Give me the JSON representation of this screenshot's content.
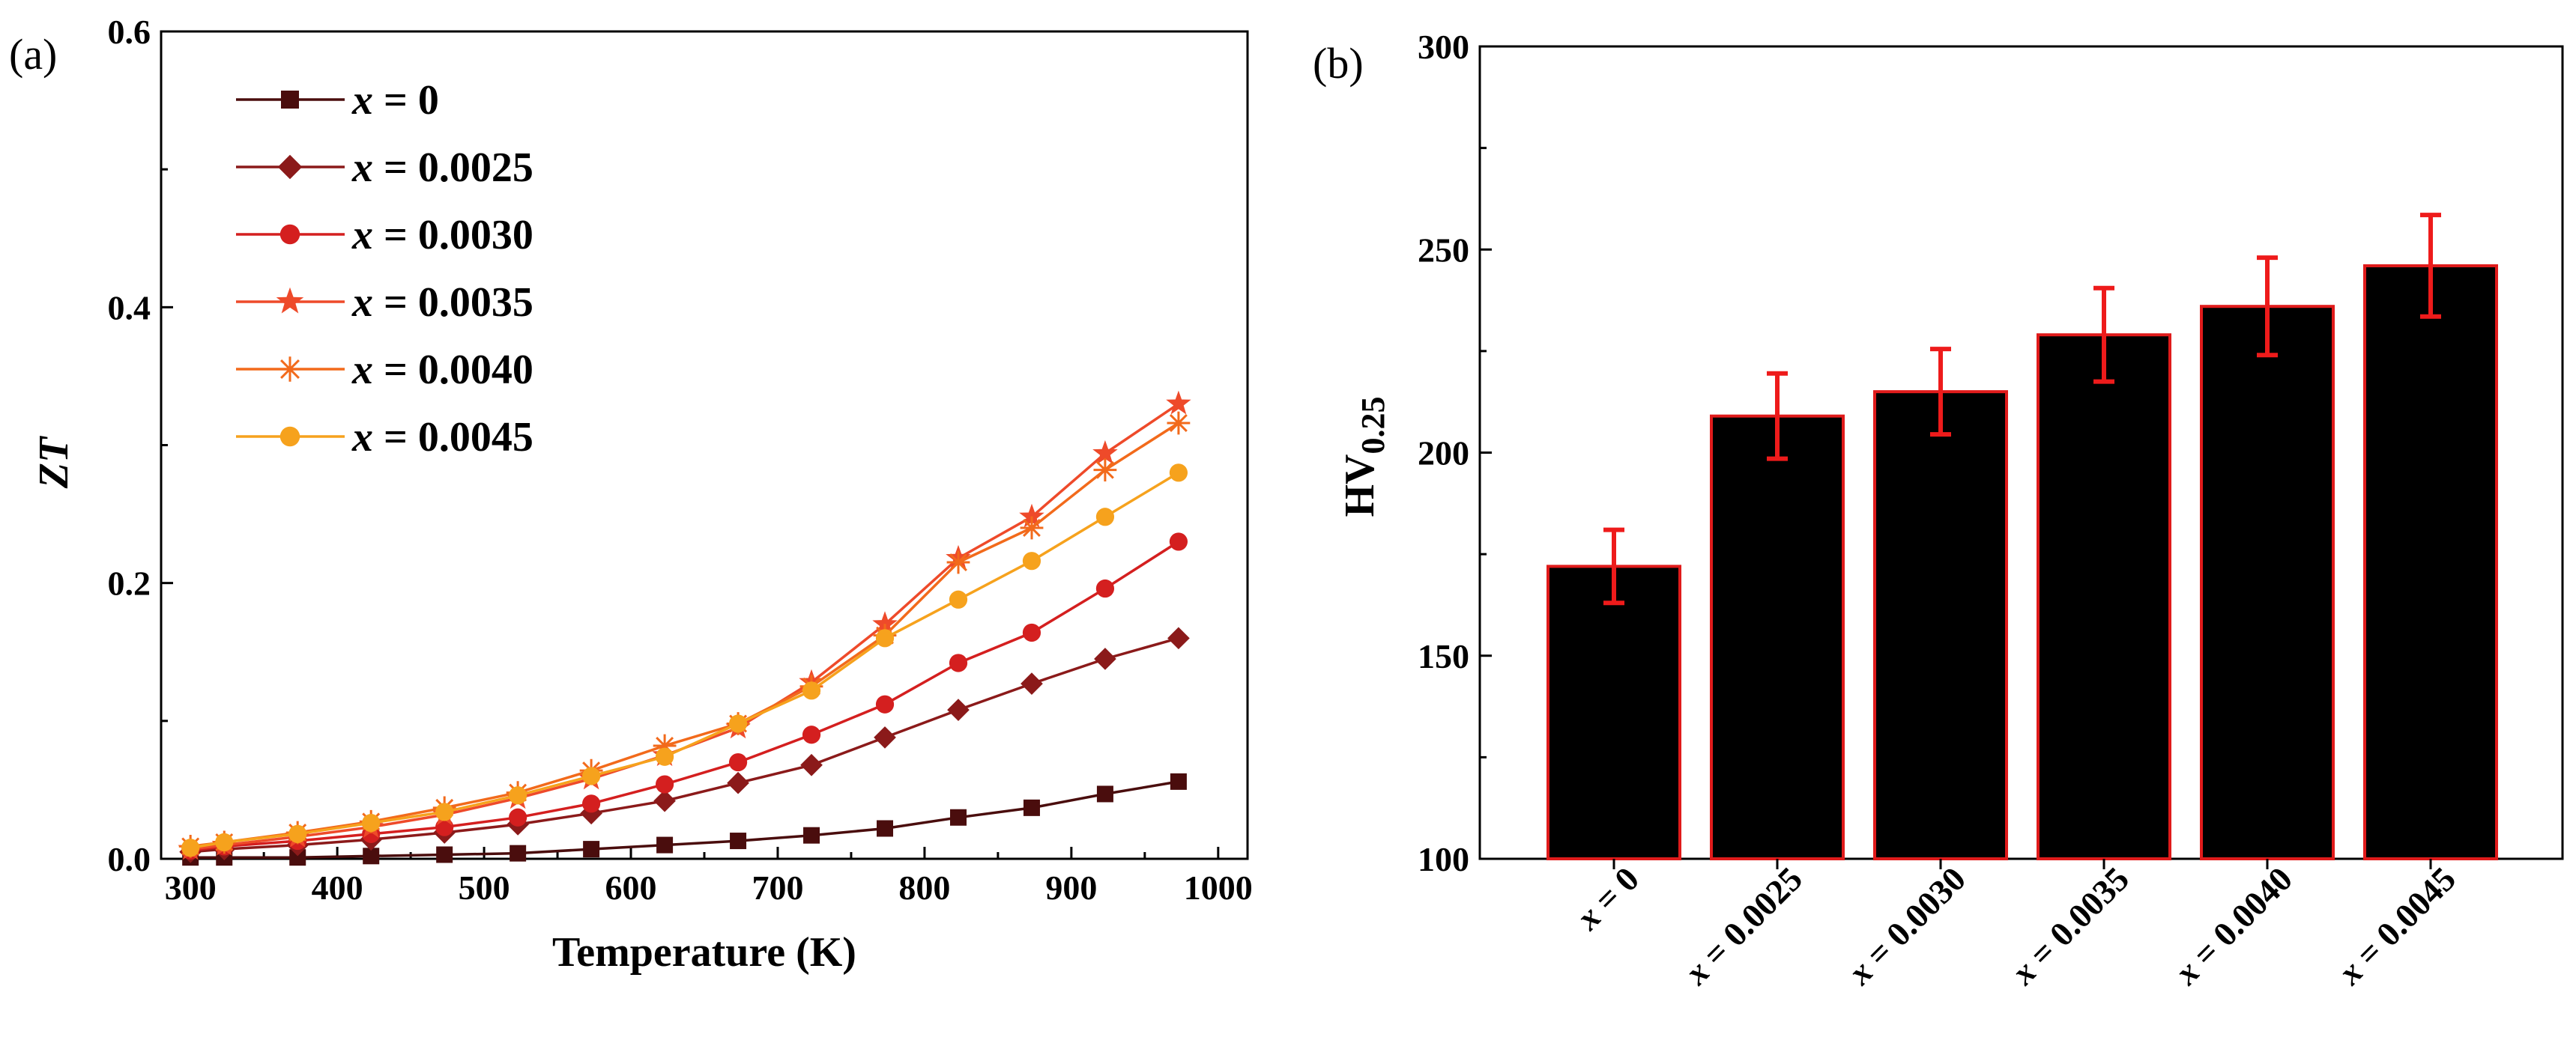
{
  "chart_data": [
    {
      "panel_label": "(a)",
      "type": "line",
      "xlabel": "Temperature (K)",
      "ylabel": "ZT",
      "xlim": [
        280,
        1020
      ],
      "ylim": [
        0,
        0.6
      ],
      "xticks": [
        "300",
        "400",
        "500",
        "600",
        "700",
        "800",
        "900",
        "1000"
      ],
      "yticks": [
        "0.0",
        "0.2",
        "0.4",
        "0.6"
      ],
      "legend_position": "top-left",
      "x": [
        300,
        323,
        373,
        423,
        473,
        523,
        573,
        623,
        673,
        723,
        773,
        823,
        873,
        923,
        973
      ],
      "series": [
        {
          "var": "x",
          "eq": " = 0",
          "marker": "square",
          "color": "#4a0d0d",
          "values": [
            0.001,
            0.001,
            0.001,
            0.002,
            0.003,
            0.004,
            0.007,
            0.01,
            0.013,
            0.017,
            0.022,
            0.03,
            0.037,
            0.047,
            0.056
          ]
        },
        {
          "var": "x",
          "eq": " = 0.0025",
          "marker": "diamond",
          "color": "#8b1a1a",
          "values": [
            0.005,
            0.007,
            0.01,
            0.014,
            0.019,
            0.025,
            0.033,
            0.042,
            0.055,
            0.068,
            0.088,
            0.108,
            0.127,
            0.145,
            0.16
          ]
        },
        {
          "var": "x",
          "eq": " = 0.0030",
          "marker": "circle",
          "color": "#d41f1f",
          "values": [
            0.006,
            0.009,
            0.013,
            0.018,
            0.023,
            0.03,
            0.04,
            0.054,
            0.07,
            0.09,
            0.112,
            0.142,
            0.164,
            0.196,
            0.23
          ]
        },
        {
          "var": "x",
          "eq": " = 0.0035",
          "marker": "star",
          "color": "#ee4a2a",
          "values": [
            0.007,
            0.01,
            0.016,
            0.023,
            0.032,
            0.044,
            0.058,
            0.075,
            0.095,
            0.128,
            0.17,
            0.218,
            0.248,
            0.294,
            0.33
          ]
        },
        {
          "var": "x",
          "eq": " = 0.0040",
          "marker": "asterisk",
          "color": "#f26a1b",
          "values": [
            0.009,
            0.012,
            0.019,
            0.027,
            0.037,
            0.048,
            0.064,
            0.082,
            0.098,
            0.125,
            0.162,
            0.215,
            0.24,
            0.282,
            0.316
          ]
        },
        {
          "var": "x",
          "eq": " = 0.0045",
          "marker": "circle",
          "color": "#f6a21d",
          "values": [
            0.008,
            0.012,
            0.018,
            0.026,
            0.034,
            0.046,
            0.06,
            0.074,
            0.098,
            0.122,
            0.16,
            0.188,
            0.216,
            0.248,
            0.28
          ]
        }
      ]
    },
    {
      "panel_label": "(b)",
      "type": "bar",
      "ylabel_main": "HV",
      "ylabel_sub": "0.25",
      "ylim": [
        100,
        300
      ],
      "yticks": [
        "100",
        "150",
        "200",
        "250",
        "300"
      ],
      "category_var": "x",
      "categories": [
        " = 0",
        " = 0.0025",
        " = 0.0030",
        " = 0.0035",
        " = 0.0040",
        " = 0.0045"
      ],
      "values": [
        172,
        209,
        215,
        229,
        236,
        246
      ],
      "errors": [
        9,
        10.5,
        10.5,
        11.5,
        12,
        12.5
      ],
      "bar_color": "#000000",
      "bar_edge_color": "#e01b1b",
      "error_color": "#ee1b1b"
    }
  ]
}
